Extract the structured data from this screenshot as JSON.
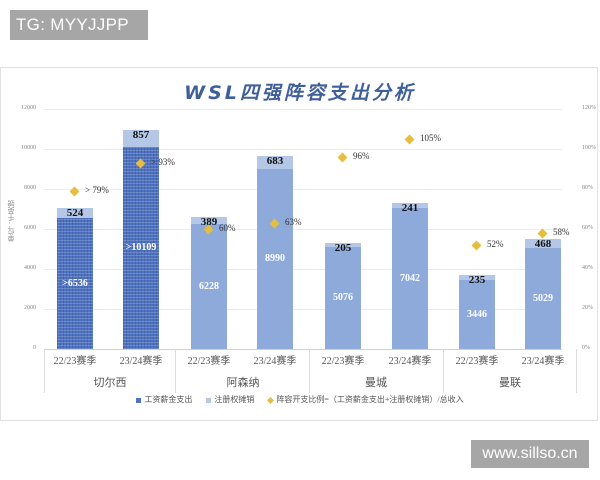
{
  "watermarks": {
    "top_left": "TG: MYYJJPP",
    "bottom_right": "www.sillso.cn"
  },
  "chart_data": {
    "type": "bar",
    "title": "WSL四强阵容支出分析",
    "ylabel": "单位：千英镑",
    "ylim": [
      0,
      12000
    ],
    "y2lim": [
      0,
      120
    ],
    "yticks": [
      "12000",
      "10000",
      "8000",
      "6000",
      "4000",
      "2000",
      "0"
    ],
    "y2ticks": [
      "120%",
      "100%",
      "80%",
      "60%",
      "40%",
      "20%",
      "0%"
    ],
    "groups": [
      "切尔西",
      "阿森纳",
      "曼城",
      "曼联"
    ],
    "categories": [
      "22/23赛季",
      "23/24赛季",
      "22/23赛季",
      "23/24赛季",
      "22/23赛季",
      "23/24赛季",
      "22/23赛季",
      "23/24赛季"
    ],
    "series": [
      {
        "name": "工资薪金支出",
        "type": "stacked-bar",
        "values": [
          6536,
          10109,
          6228,
          8990,
          5076,
          7042,
          3446,
          5029
        ],
        "labels": [
          ">6536",
          ">10109",
          "6228",
          "8990",
          "5076",
          "7042",
          "3446",
          "5029"
        ]
      },
      {
        "name": "注册权摊销",
        "type": "stacked-bar",
        "values": [
          524,
          857,
          389,
          683,
          205,
          241,
          235,
          468
        ],
        "labels": [
          "524",
          "857",
          "389",
          "683",
          "205",
          "241",
          "235",
          "468"
        ]
      },
      {
        "name": "阵容开支比例=（工资薪金支出+注册权摊销）/总收入",
        "type": "scatter",
        "axis": "secondary",
        "values": [
          79,
          93,
          60,
          63,
          96,
          105,
          52,
          58
        ],
        "labels": [
          "> 79%",
          "> 93%",
          "60%",
          "63%",
          "96%",
          "105%",
          "52%",
          "58%"
        ]
      }
    ],
    "legend": [
      "工资薪金支出",
      "注册权摊销",
      "阵容开支比例=（工资薪金支出+注册权摊销）/总收入"
    ],
    "legend_position": "bottom",
    "grid": true,
    "colors": {
      "salary": "#8eaadb",
      "salary_chelsea": "#4f73c0",
      "amortization": "#b4c7e7",
      "ratio": "#e7be3c",
      "title": "#3f5f9a"
    }
  }
}
